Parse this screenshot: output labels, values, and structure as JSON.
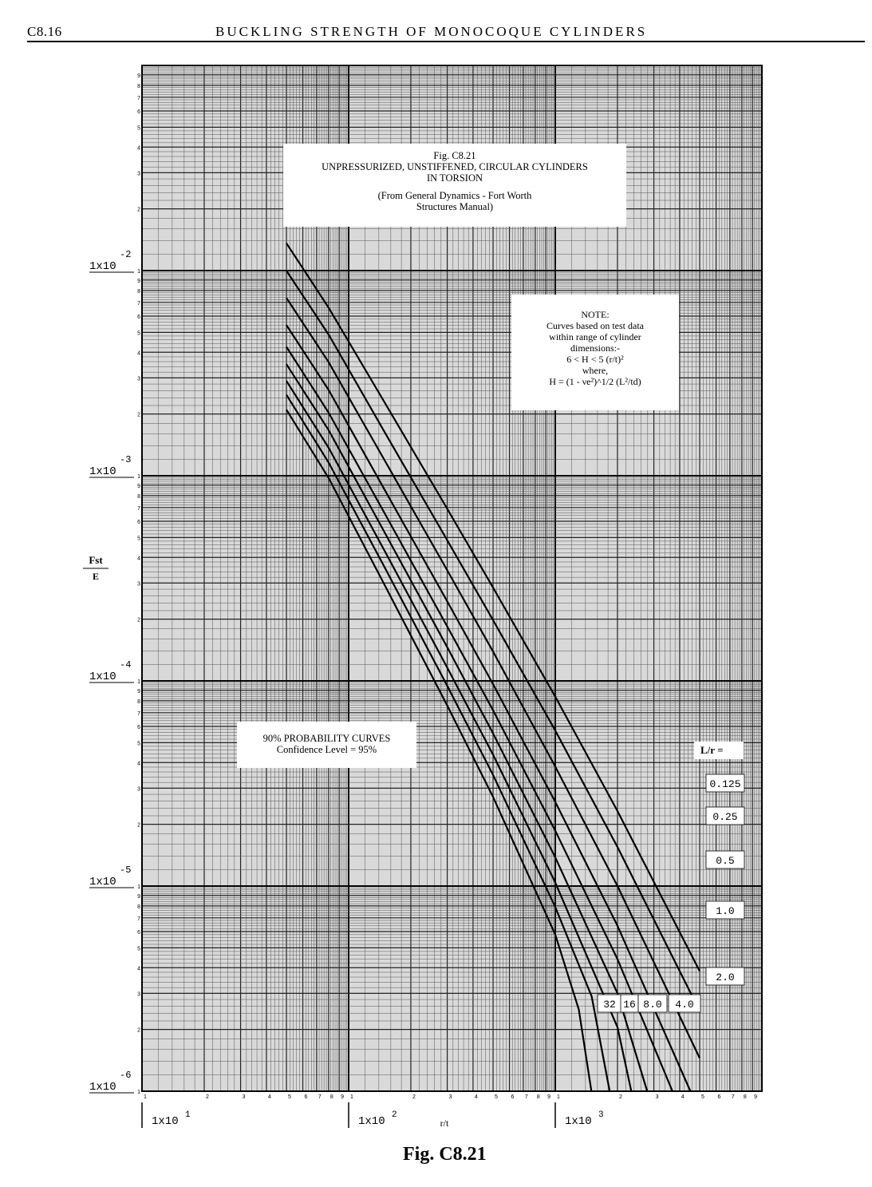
{
  "header": {
    "page_number": "C8.16",
    "running_head": "BUCKLING STRENGTH OF MONOCOQUE CYLINDERS"
  },
  "title_box": {
    "line1": "Fig. C8.21",
    "line2": "UNPRESSURIZED, UNSTIFFENED, CIRCULAR CYLINDERS",
    "line3": "IN TORSION",
    "line4": "(From General Dynamics - Fort Worth",
    "line5": "Structures Manual)"
  },
  "note_box": {
    "line1": "NOTE:",
    "line2": "Curves based on test data",
    "line3": "within range of cylinder",
    "line4": "dimensions:-",
    "line5": "6 < H < 5 (r/t)²",
    "line6": "where,",
    "line7": "H = (1 - νe²)^1/2 (L²/td)"
  },
  "prob_box": {
    "line1": "90% PROBABILITY CURVES",
    "line2": "Confidence Level = 95%"
  },
  "figure_caption": "Fig. C8.21",
  "chart_data": {
    "type": "line",
    "x_scale": "log",
    "y_scale": "log",
    "xlim": [
      10,
      10000
    ],
    "ylim": [
      1e-06,
      0.1
    ],
    "grid": true,
    "xlabel": "r/t",
    "ylabel_num": "Fst",
    "ylabel_den": "E",
    "x_decade_labels": [
      {
        "value": 10,
        "mantissa": "1x10",
        "exp": "1"
      },
      {
        "value": 100,
        "mantissa": "1x10",
        "exp": "2"
      },
      {
        "value": 1000,
        "mantissa": "1x10",
        "exp": "3"
      }
    ],
    "y_decade_labels": [
      {
        "value": 0.01,
        "mantissa": "1x10",
        "exp": "-2"
      },
      {
        "value": 0.001,
        "mantissa": "1x10",
        "exp": "-3"
      },
      {
        "value": 0.0001,
        "mantissa": "1x10",
        "exp": "-4"
      },
      {
        "value": 1e-05,
        "mantissa": "1x10",
        "exp": "-5"
      },
      {
        "value": 1e-06,
        "mantissa": "1x10",
        "exp": "-6"
      }
    ],
    "legend_header": "L/r =",
    "series": [
      {
        "name": "0.125",
        "x": [
          50,
          80,
          150,
          300,
          500,
          1000,
          2000,
          5000
        ],
        "y": [
          0.0136,
          0.0066,
          0.00226,
          0.00069,
          0.000285,
          8.38e-05,
          2.32e-05,
          3.85e-06
        ]
      },
      {
        "name": "0.25",
        "x": [
          50,
          80,
          150,
          300,
          500,
          1000,
          2000,
          5000
        ],
        "y": [
          0.00999,
          0.00488,
          0.00162,
          0.000485,
          0.000198,
          5.73e-05,
          1.55e-05,
          2.46e-06
        ]
      },
      {
        "name": "0.5",
        "x": [
          50,
          80,
          150,
          300,
          500,
          1000,
          2000,
          5000
        ],
        "y": [
          0.00736,
          0.00358,
          0.00118,
          0.000346,
          0.000139,
          3.82e-05,
          1e-05,
          1.45e-06
        ]
      },
      {
        "name": "1.0",
        "x": [
          50,
          80,
          150,
          300,
          500,
          1000,
          2000,
          5000
        ],
        "y": [
          0.00543,
          0.00262,
          0.000848,
          0.000244,
          9.65e-05,
          2.57e-05,
          6.4e-06,
          7.9e-07
        ]
      },
      {
        "name": "2.0",
        "x": [
          50,
          80,
          150,
          300,
          500,
          1000,
          2000,
          5000
        ],
        "y": [
          0.00425,
          0.00203,
          0.000651,
          0.000184,
          7.2e-05,
          1.86e-05,
          4.4e-06,
          4.8e-07
        ]
      },
      {
        "name": "4.0",
        "x": [
          50,
          80,
          150,
          300,
          500,
          1000,
          2000,
          4000
        ],
        "y": [
          0.0035,
          0.00167,
          0.000525,
          0.000146,
          5.55e-05,
          1.38e-05,
          3e-06,
          3e-07
        ]
      },
      {
        "name": "8.0",
        "x": [
          50,
          80,
          150,
          300,
          500,
          1000,
          2000,
          3000
        ],
        "y": [
          0.0029,
          0.00137,
          0.000427,
          0.000116,
          4.37e-05,
          1.04e-05,
          2.05e-06,
          3.1e-07
        ]
      },
      {
        "name": "16",
        "x": [
          50,
          80,
          150,
          300,
          500,
          1000,
          1500,
          2300
        ],
        "y": [
          0.00248,
          0.00116,
          0.000355,
          9.46e-05,
          3.48e-05,
          7.9e-06,
          2.9e-06,
          3e-07
        ]
      },
      {
        "name": "32",
        "x": [
          50,
          80,
          150,
          300,
          500,
          1000,
          1300,
          1800
        ],
        "y": [
          0.0021,
          0.000975,
          0.000291,
          7.58e-05,
          2.72e-05,
          5.8e-06,
          2.5e-06,
          3e-07
        ]
      }
    ],
    "right_labels": [
      "0.125",
      "0.25",
      "0.5",
      "1.0",
      "2.0"
    ],
    "bottom_labels": [
      "32",
      "16",
      "8.0",
      "4.0"
    ]
  }
}
